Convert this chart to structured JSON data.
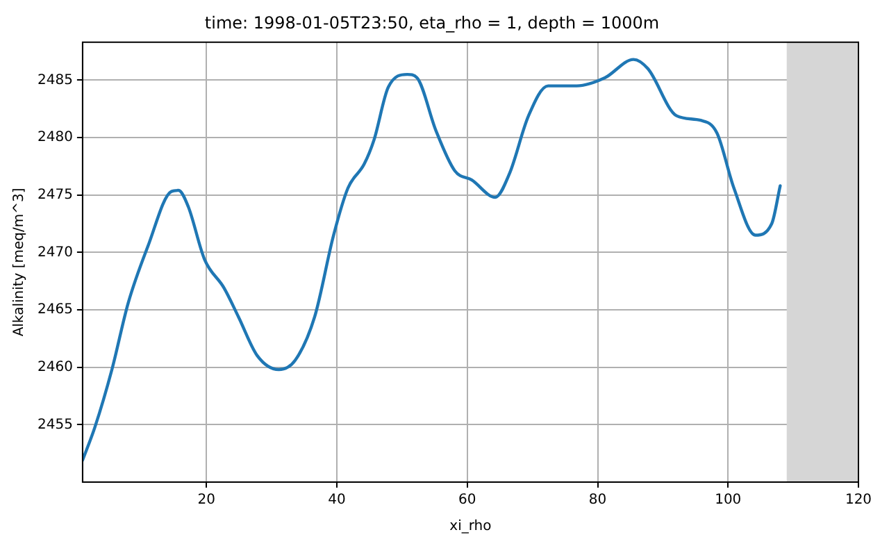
{
  "chart_data": {
    "type": "line",
    "title": "time: 1998-01-05T23:50, eta_rho = 1, depth = 1000m",
    "xlabel": "xi_rho",
    "ylabel": "Alkalinity [meq/m^3]",
    "series": [
      {
        "color": "#1f77b4",
        "x": [
          1,
          2.9,
          5.5,
          8.0,
          11,
          14.6,
          15.7,
          17.2,
          19.7,
          22.7,
          24.9,
          27.8,
          31.1,
          33.6,
          36.6,
          39.5,
          41.7,
          44.2,
          45.7,
          47.9,
          50.8,
          52.3,
          55.2,
          58.1,
          60.7,
          64.3,
          66.5,
          69.4,
          72.4,
          76.8,
          81.1,
          85.5,
          87.7,
          92.1,
          95.8,
          98.3,
          100.9,
          104.2,
          106.7,
          108
        ],
        "values": [
          2451.9,
          2454.8,
          2459.8,
          2465.6,
          2470.5,
          2475.3,
          2475.4,
          2474.0,
          2469.4,
          2466.9,
          2464.4,
          2461.0,
          2459.8,
          2460.6,
          2464.4,
          2471.5,
          2475.6,
          2477.7,
          2479.8,
          2484.4,
          2485.5,
          2485.2,
          2480.6,
          2477.1,
          2476.3,
          2474.8,
          2476.9,
          2481.9,
          2484.5,
          2484.5,
          2485.2,
          2486.8,
          2486.0,
          2481.9,
          2481.5,
          2480.4,
          2475.6,
          2471.5,
          2472.5,
          2475.8
        ]
      }
    ],
    "bands": [
      {
        "axis": "x",
        "from": 109,
        "to": 120,
        "color": "#d6d6d6"
      }
    ],
    "xlim": [
      1,
      120
    ],
    "xticks": [
      20,
      40,
      60,
      80,
      100,
      120
    ],
    "ylim": [
      2450,
      2488.3
    ],
    "yticks": [
      2455,
      2460,
      2465,
      2470,
      2475,
      2480,
      2485
    ],
    "grid": true,
    "legend": false,
    "marker": "none",
    "line_style": "solid"
  }
}
